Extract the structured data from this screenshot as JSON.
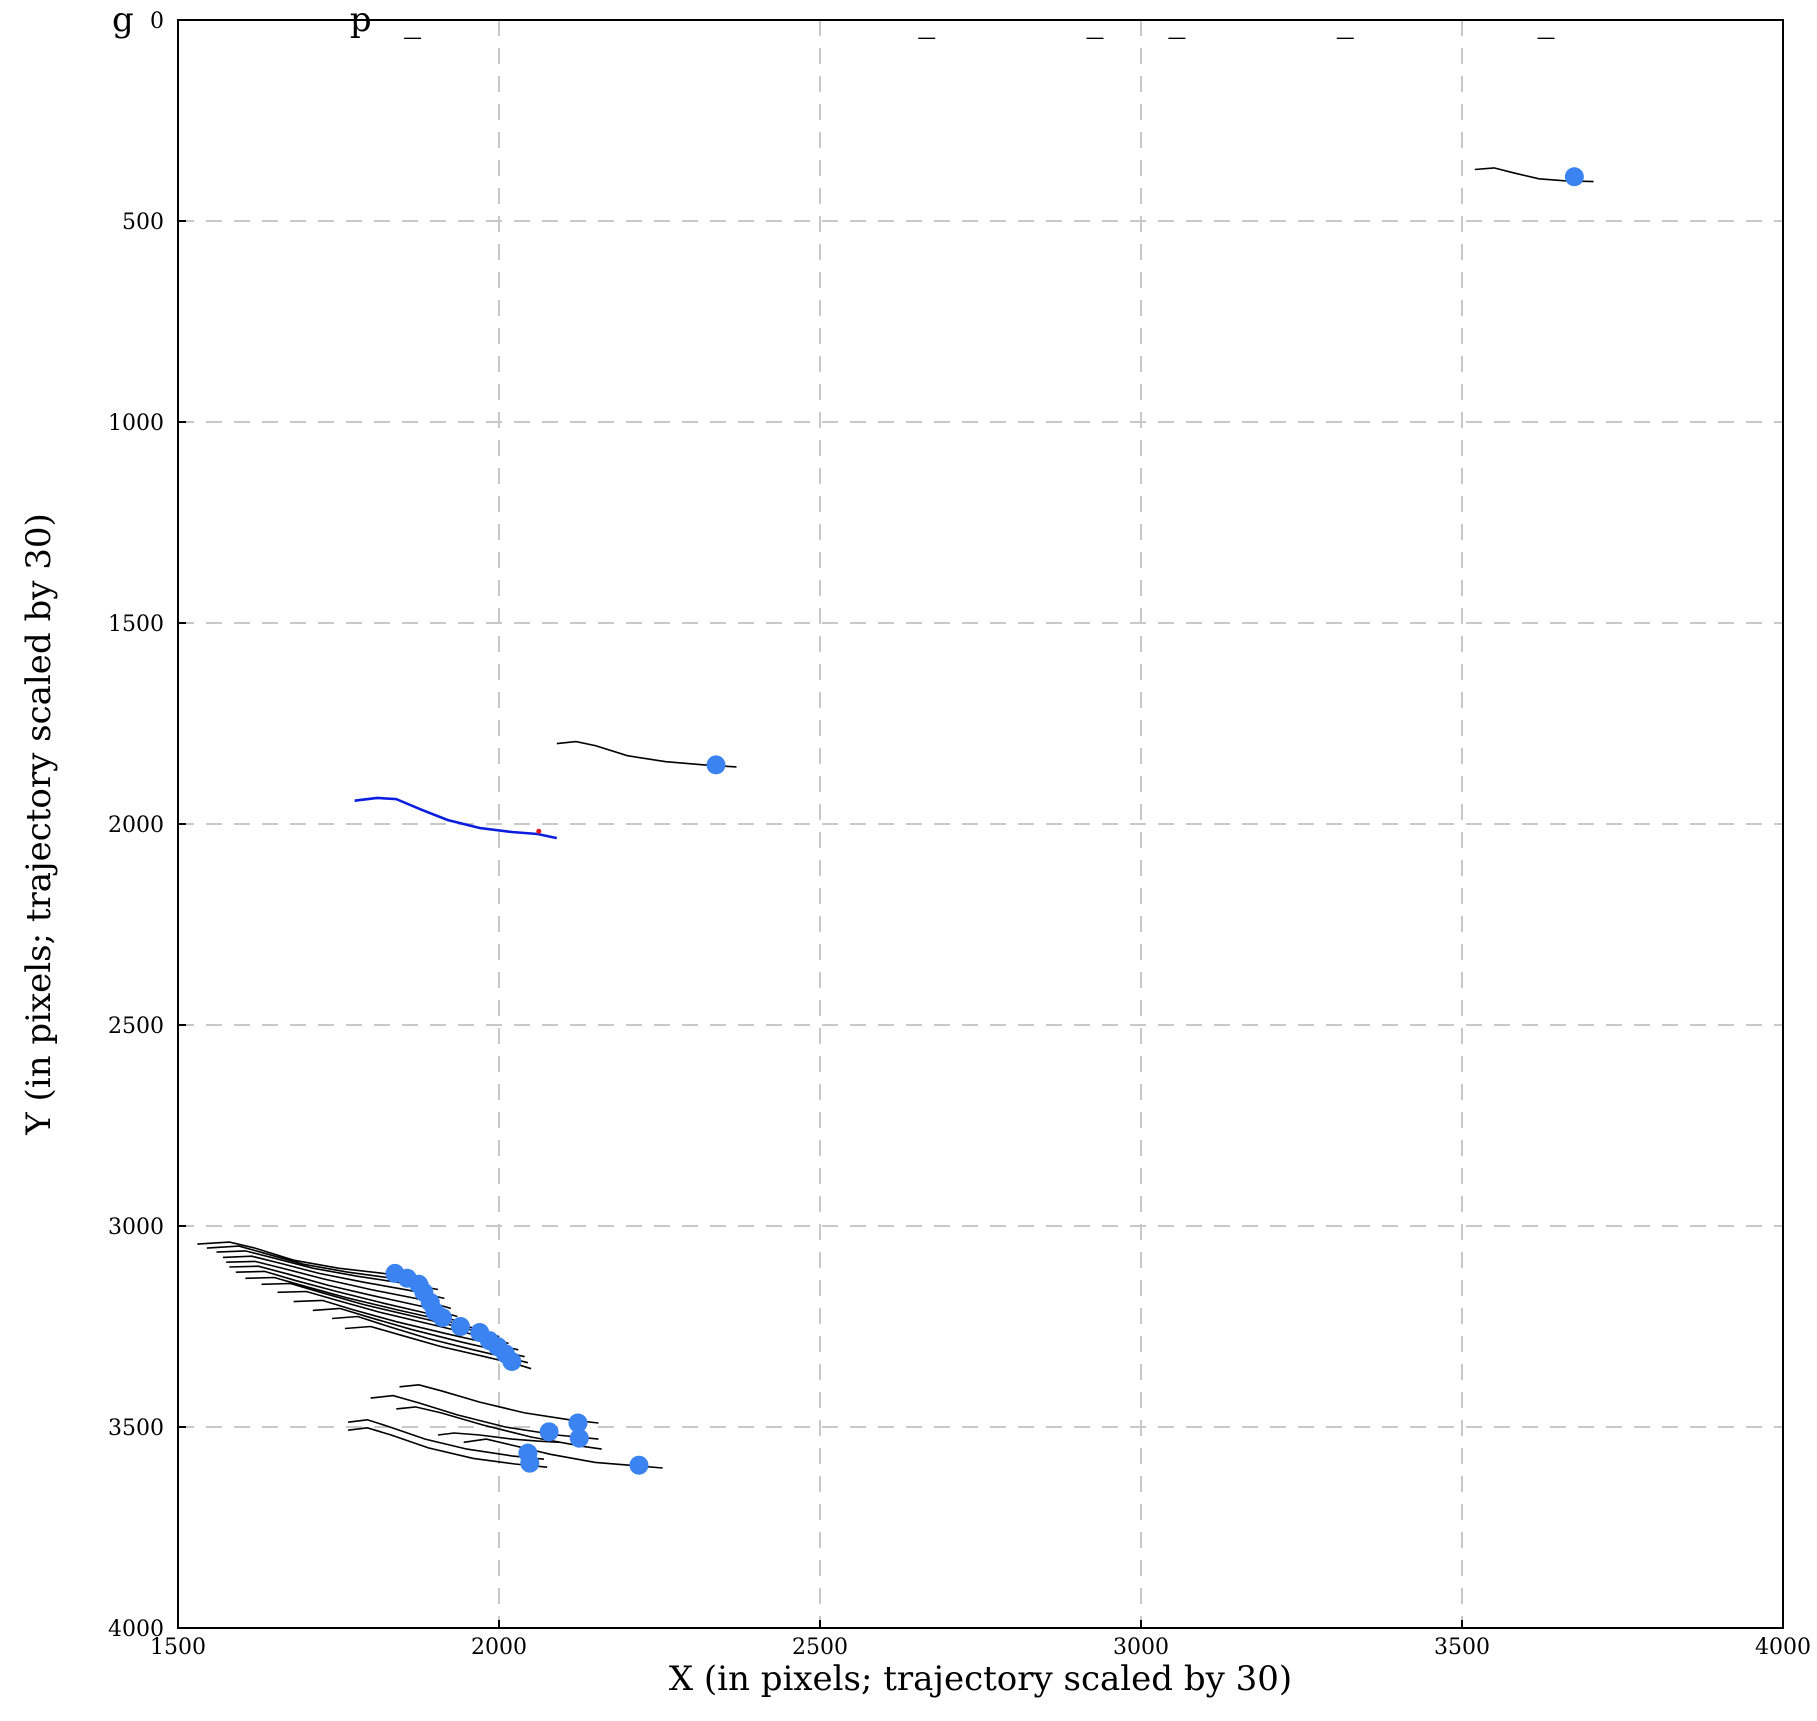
{
  "chart_data": {
    "type": "scatter",
    "title": "g                    p   _                                              _              _      _              _                 _",
    "xlabel": "X (in pixels; trajectory scaled by 30)",
    "ylabel": "Y (in pixels; trajectory scaled by 30)",
    "xlim": [
      1500,
      4000
    ],
    "ylim": [
      4000,
      0
    ],
    "y_axis_inverted": true,
    "grid": true,
    "grid_style": "dashed",
    "legend": "none",
    "colors": {
      "point": "#3a83f0",
      "trajectory": "#000000",
      "highlight_trajectory": "#0b1ee0",
      "highlight_point": "#e81212",
      "grid": "#c8c8c8"
    },
    "xticks": [
      1500,
      2000,
      2500,
      3000,
      3500,
      4000
    ],
    "yticks": [
      0,
      500,
      1000,
      1500,
      2000,
      2500,
      3000,
      3500,
      4000
    ],
    "series": [
      {
        "kind": "current_positions",
        "points": [
          [
            3675,
            390
          ],
          [
            2338,
            1853
          ],
          [
            1838,
            3118
          ],
          [
            1857,
            3130
          ],
          [
            1875,
            3145
          ],
          [
            1883,
            3165
          ],
          [
            1893,
            3190
          ],
          [
            1900,
            3213
          ],
          [
            1912,
            3228
          ],
          [
            1940,
            3250
          ],
          [
            1970,
            3265
          ],
          [
            1985,
            3285
          ],
          [
            1998,
            3300
          ],
          [
            2010,
            3318
          ],
          [
            2020,
            3337
          ],
          [
            2123,
            3490
          ],
          [
            2125,
            3528
          ],
          [
            2078,
            3512
          ],
          [
            2045,
            3565
          ],
          [
            2048,
            3590
          ],
          [
            2218,
            3595
          ]
        ]
      },
      {
        "kind": "trajectories",
        "paths": [
          [
            [
              3520,
              372
            ],
            [
              3550,
              368
            ],
            [
              3580,
              380
            ],
            [
              3620,
              395
            ],
            [
              3660,
              400
            ],
            [
              3705,
              402
            ]
          ],
          [
            [
              2090,
              1800
            ],
            [
              2120,
              1795
            ],
            [
              2150,
              1805
            ],
            [
              2200,
              1830
            ],
            [
              2260,
              1845
            ],
            [
              2320,
              1853
            ],
            [
              2370,
              1858
            ]
          ],
          [
            [
              1530,
              3045
            ],
            [
              1580,
              3040
            ],
            [
              1620,
              3055
            ],
            [
              1680,
              3085
            ],
            [
              1750,
              3105
            ],
            [
              1820,
              3118
            ],
            [
              1870,
              3130
            ]
          ],
          [
            [
              1545,
              3055
            ],
            [
              1595,
              3050
            ],
            [
              1635,
              3068
            ],
            [
              1695,
              3095
            ],
            [
              1765,
              3115
            ],
            [
              1835,
              3130
            ],
            [
              1890,
              3142
            ]
          ],
          [
            [
              1560,
              3065
            ],
            [
              1605,
              3062
            ],
            [
              1650,
              3080
            ],
            [
              1710,
              3105
            ],
            [
              1780,
              3125
            ],
            [
              1850,
              3142
            ],
            [
              1905,
              3158
            ]
          ],
          [
            [
              1570,
              3078
            ],
            [
              1615,
              3075
            ],
            [
              1660,
              3093
            ],
            [
              1720,
              3118
            ],
            [
              1790,
              3140
            ],
            [
              1860,
              3160
            ],
            [
              1915,
              3180
            ]
          ],
          [
            [
              1575,
              3090
            ],
            [
              1620,
              3088
            ],
            [
              1665,
              3106
            ],
            [
              1728,
              3132
            ],
            [
              1800,
              3158
            ],
            [
              1870,
              3180
            ],
            [
              1925,
              3205
            ]
          ],
          [
            [
              1580,
              3102
            ],
            [
              1625,
              3100
            ],
            [
              1672,
              3120
            ],
            [
              1735,
              3148
            ],
            [
              1808,
              3175
            ],
            [
              1880,
              3200
            ],
            [
              1935,
              3225
            ]
          ],
          [
            [
              1590,
              3115
            ],
            [
              1635,
              3113
            ],
            [
              1682,
              3135
            ],
            [
              1745,
              3162
            ],
            [
              1820,
              3192
            ],
            [
              1890,
              3218
            ],
            [
              1950,
              3242
            ]
          ],
          [
            [
              1605,
              3130
            ],
            [
              1650,
              3128
            ],
            [
              1698,
              3150
            ],
            [
              1762,
              3178
            ],
            [
              1840,
              3208
            ],
            [
              1915,
              3235
            ],
            [
              1975,
              3260
            ]
          ],
          [
            [
              1630,
              3145
            ],
            [
              1675,
              3143
            ],
            [
              1722,
              3165
            ],
            [
              1788,
              3195
            ],
            [
              1868,
              3225
            ],
            [
              1940,
              3252
            ],
            [
              2000,
              3275
            ]
          ],
          [
            [
              1655,
              3165
            ],
            [
              1700,
              3163
            ],
            [
              1748,
              3185
            ],
            [
              1815,
              3215
            ],
            [
              1895,
              3245
            ],
            [
              1965,
              3272
            ],
            [
              2015,
              3292
            ]
          ],
          [
            [
              1680,
              3188
            ],
            [
              1725,
              3185
            ],
            [
              1772,
              3208
            ],
            [
              1840,
              3238
            ],
            [
              1918,
              3268
            ],
            [
              1985,
              3292
            ],
            [
              2030,
              3308
            ]
          ],
          [
            [
              1710,
              3210
            ],
            [
              1752,
              3205
            ],
            [
              1800,
              3228
            ],
            [
              1865,
              3258
            ],
            [
              1940,
              3288
            ],
            [
              2005,
              3312
            ],
            [
              2040,
              3325
            ]
          ],
          [
            [
              1740,
              3230
            ],
            [
              1780,
              3225
            ],
            [
              1828,
              3250
            ],
            [
              1890,
              3280
            ],
            [
              1960,
              3308
            ],
            [
              2020,
              3330
            ],
            [
              2045,
              3340
            ]
          ],
          [
            [
              1760,
              3255
            ],
            [
              1800,
              3250
            ],
            [
              1848,
              3272
            ],
            [
              1910,
              3300
            ],
            [
              1978,
              3325
            ],
            [
              2030,
              3345
            ],
            [
              2050,
              3355
            ]
          ],
          [
            [
              1845,
              3400
            ],
            [
              1875,
              3395
            ],
            [
              1910,
              3410
            ],
            [
              1970,
              3438
            ],
            [
              2040,
              3465
            ],
            [
              2110,
              3482
            ],
            [
              2155,
              3490
            ]
          ],
          [
            [
              1800,
              3428
            ],
            [
              1835,
              3422
            ],
            [
              1875,
              3440
            ],
            [
              1935,
              3470
            ],
            [
              2010,
              3500
            ],
            [
              2090,
              3520
            ],
            [
              2155,
              3530
            ]
          ],
          [
            [
              1840,
              3455
            ],
            [
              1870,
              3450
            ],
            [
              1910,
              3465
            ],
            [
              1975,
              3495
            ],
            [
              2050,
              3525
            ],
            [
              2130,
              3548
            ],
            [
              2160,
              3555
            ]
          ],
          [
            [
              1905,
              3520
            ],
            [
              1930,
              3515
            ],
            [
              1970,
              3520
            ],
            [
              2020,
              3530
            ],
            [
              2060,
              3535
            ],
            [
              2095,
              3538
            ]
          ],
          [
            [
              1765,
              3488
            ],
            [
              1795,
              3482
            ],
            [
              1830,
              3500
            ],
            [
              1885,
              3530
            ],
            [
              1950,
              3555
            ],
            [
              2020,
              3572
            ],
            [
              2070,
              3580
            ]
          ],
          [
            [
              1765,
              3508
            ],
            [
              1795,
              3502
            ],
            [
              1832,
              3520
            ],
            [
              1890,
              3552
            ],
            [
              1960,
              3578
            ],
            [
              2025,
              3592
            ],
            [
              2075,
              3600
            ]
          ],
          [
            [
              1945,
              3538
            ],
            [
              1980,
              3530
            ],
            [
              2020,
              3545
            ],
            [
              2080,
              3568
            ],
            [
              2150,
              3588
            ],
            [
              2210,
              3596
            ],
            [
              2255,
              3602
            ]
          ]
        ]
      },
      {
        "kind": "highlighted_trajectory",
        "path": [
          [
            1775,
            1942
          ],
          [
            1810,
            1935
          ],
          [
            1840,
            1938
          ],
          [
            1880,
            1965
          ],
          [
            1920,
            1990
          ],
          [
            1970,
            2010
          ],
          [
            2020,
            2020
          ],
          [
            2060,
            2025
          ],
          [
            2090,
            2035
          ]
        ],
        "endpoint": [
          2062,
          2018
        ]
      }
    ]
  }
}
